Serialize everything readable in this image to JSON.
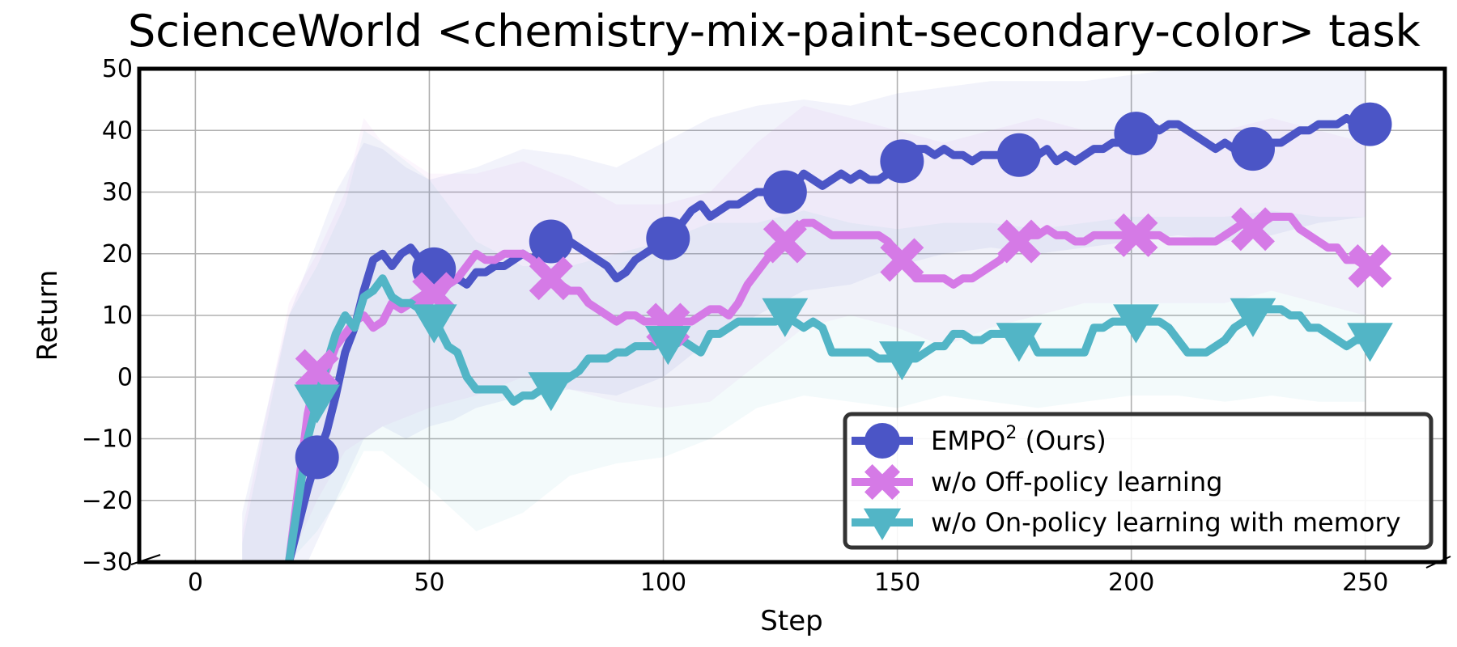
{
  "chart_data": {
    "type": "line",
    "title": "ScienceWorld <chemistry-mix-paint-secondary-color> task",
    "xlabel": "Step",
    "ylabel": "Return",
    "xlim": [
      -12,
      267
    ],
    "ylim": [
      -30,
      50
    ],
    "xticks": [
      0,
      50,
      100,
      150,
      200,
      250
    ],
    "yticks": [
      -30,
      -20,
      -10,
      0,
      10,
      20,
      30,
      40,
      50
    ],
    "grid": true,
    "legend_position": "lower-right",
    "series": [
      {
        "name": "EMPO",
        "name_sup": "2",
        "name_suffix": " (Ours)",
        "color": "#4b55c6",
        "band_color": "#4b55c6",
        "marker": "circle",
        "x": [
          20,
          22,
          24,
          26,
          28,
          30,
          32,
          34,
          36,
          38,
          40,
          42,
          44,
          46,
          48,
          50,
          52,
          54,
          56,
          58,
          60,
          62,
          64,
          66,
          68,
          70,
          72,
          74,
          76,
          78,
          80,
          82,
          84,
          86,
          88,
          90,
          92,
          94,
          96,
          98,
          100,
          102,
          104,
          106,
          108,
          110,
          112,
          114,
          116,
          118,
          120,
          122,
          124,
          126,
          128,
          130,
          132,
          134,
          136,
          138,
          140,
          142,
          144,
          146,
          148,
          150,
          152,
          154,
          156,
          158,
          160,
          162,
          164,
          166,
          168,
          170,
          172,
          174,
          176,
          178,
          180,
          182,
          184,
          186,
          188,
          190,
          192,
          194,
          196,
          198,
          200,
          202,
          204,
          206,
          208,
          210,
          212,
          214,
          216,
          218,
          220,
          222,
          224,
          226,
          228,
          230,
          232,
          234,
          236,
          238,
          240,
          242,
          244,
          246,
          248,
          250
        ],
        "y": [
          -30,
          -24,
          -18,
          -13,
          -9,
          -3,
          4,
          8,
          14,
          19,
          20,
          18,
          20,
          21,
          19,
          18,
          17,
          15,
          16,
          15,
          17,
          17,
          18,
          18,
          19,
          20,
          19,
          21,
          22,
          21,
          22,
          21,
          20,
          19,
          18,
          16,
          17,
          19,
          20,
          21,
          22,
          23,
          25,
          27,
          28,
          26,
          27,
          28,
          28,
          29,
          30,
          30,
          31,
          30,
          31,
          33,
          32,
          31,
          32,
          33,
          32,
          33,
          32,
          32,
          33,
          34,
          36,
          37,
          37,
          36,
          37,
          36,
          36,
          35,
          36,
          36,
          36,
          35,
          36,
          36,
          36,
          37,
          35,
          36,
          35,
          36,
          37,
          37,
          38,
          38,
          39,
          40,
          41,
          40,
          41,
          41,
          40,
          39,
          38,
          37,
          38,
          37,
          37,
          37,
          37,
          38,
          38,
          39,
          40,
          40,
          41,
          41,
          41,
          42,
          41,
          41
        ],
        "band": [
          [
            10,
            -30,
            -22
          ],
          [
            20,
            -30,
            10
          ],
          [
            24,
            -30,
            18
          ],
          [
            30,
            -20,
            30
          ],
          [
            36,
            -10,
            38
          ],
          [
            40,
            -8,
            37
          ],
          [
            45,
            -10,
            34
          ],
          [
            50,
            -8,
            32
          ],
          [
            55,
            -7,
            33
          ],
          [
            60,
            -5,
            34
          ],
          [
            70,
            -3,
            37
          ],
          [
            80,
            -2,
            36
          ],
          [
            90,
            -3,
            34
          ],
          [
            100,
            0,
            38
          ],
          [
            110,
            6,
            42
          ],
          [
            120,
            10,
            44
          ],
          [
            130,
            14,
            45
          ],
          [
            140,
            15,
            44
          ],
          [
            150,
            18,
            46
          ],
          [
            160,
            20,
            47
          ],
          [
            170,
            21,
            48
          ],
          [
            180,
            20,
            48
          ],
          [
            190,
            21,
            48
          ],
          [
            200,
            22,
            49
          ],
          [
            210,
            23,
            50
          ],
          [
            220,
            22,
            50
          ],
          [
            230,
            23,
            50
          ],
          [
            240,
            25,
            50
          ],
          [
            250,
            26,
            50
          ]
        ]
      },
      {
        "name": "w/o Off-policy learning",
        "color": "#d57ae6",
        "band_color": "#d57ae6",
        "marker": "x",
        "x": [
          20,
          22,
          24,
          26,
          28,
          30,
          32,
          34,
          36,
          38,
          40,
          42,
          44,
          46,
          48,
          50,
          52,
          54,
          56,
          58,
          60,
          62,
          64,
          66,
          68,
          70,
          72,
          74,
          76,
          78,
          80,
          82,
          84,
          86,
          88,
          90,
          92,
          94,
          96,
          98,
          100,
          102,
          104,
          106,
          108,
          110,
          112,
          114,
          116,
          118,
          120,
          122,
          124,
          126,
          128,
          130,
          132,
          134,
          136,
          138,
          140,
          142,
          144,
          146,
          148,
          150,
          152,
          154,
          156,
          158,
          160,
          162,
          164,
          166,
          168,
          170,
          172,
          174,
          176,
          178,
          180,
          182,
          184,
          186,
          188,
          190,
          192,
          194,
          196,
          198,
          200,
          202,
          204,
          206,
          208,
          210,
          212,
          214,
          216,
          218,
          220,
          222,
          224,
          226,
          228,
          230,
          232,
          234,
          236,
          238,
          240,
          242,
          244,
          246,
          248,
          250
        ],
        "y": [
          -30,
          -18,
          -6,
          1,
          1,
          5,
          7,
          9,
          10,
          8,
          9,
          12,
          11,
          12,
          13,
          14,
          13,
          15,
          16,
          18,
          20,
          19,
          19,
          20,
          20,
          20,
          19,
          17,
          16,
          15,
          14,
          14,
          12,
          11,
          10,
          9,
          10,
          10,
          9,
          9,
          9,
          8,
          9,
          9,
          10,
          11,
          11,
          10,
          12,
          15,
          17,
          19,
          21,
          22,
          24,
          25,
          25,
          24,
          23,
          23,
          23,
          23,
          23,
          23,
          22,
          20,
          18,
          16,
          16,
          16,
          16,
          15,
          16,
          16,
          17,
          18,
          19,
          21,
          22,
          23,
          23,
          24,
          23,
          23,
          22,
          22,
          23,
          23,
          23,
          23,
          23,
          23,
          23,
          23,
          22,
          22,
          22,
          22,
          22,
          22,
          23,
          24,
          25,
          24,
          25,
          26,
          26,
          26,
          24,
          23,
          22,
          21,
          21,
          19,
          19,
          18
        ],
        "band": [
          [
            10,
            -30,
            -25
          ],
          [
            20,
            -30,
            12
          ],
          [
            26,
            -20,
            20
          ],
          [
            32,
            -12,
            30
          ],
          [
            36,
            -10,
            42
          ],
          [
            40,
            -8,
            38
          ],
          [
            50,
            -5,
            33
          ],
          [
            60,
            -3,
            33
          ],
          [
            70,
            0,
            35
          ],
          [
            80,
            -2,
            32
          ],
          [
            90,
            -4,
            28
          ],
          [
            100,
            -5,
            28
          ],
          [
            110,
            -4,
            30
          ],
          [
            120,
            2,
            38
          ],
          [
            130,
            8,
            44
          ],
          [
            140,
            10,
            42
          ],
          [
            150,
            8,
            40
          ],
          [
            160,
            5,
            38
          ],
          [
            170,
            8,
            40
          ],
          [
            180,
            10,
            42
          ],
          [
            190,
            12,
            40
          ],
          [
            200,
            12,
            40
          ],
          [
            210,
            12,
            40
          ],
          [
            220,
            12,
            40
          ],
          [
            230,
            14,
            42
          ],
          [
            240,
            12,
            40
          ],
          [
            250,
            10,
            38
          ]
        ]
      },
      {
        "name": "w/o On-policy learning with memory",
        "color": "#52b5c6",
        "band_color": "#52b5c6",
        "marker": "triangle-down",
        "x": [
          20,
          22,
          24,
          26,
          28,
          30,
          32,
          34,
          36,
          38,
          40,
          42,
          44,
          46,
          48,
          50,
          52,
          54,
          56,
          58,
          60,
          62,
          64,
          66,
          68,
          70,
          72,
          74,
          76,
          78,
          80,
          82,
          84,
          86,
          88,
          90,
          92,
          94,
          96,
          98,
          100,
          102,
          104,
          106,
          108,
          110,
          112,
          114,
          116,
          118,
          120,
          122,
          124,
          126,
          128,
          130,
          132,
          134,
          136,
          138,
          140,
          142,
          144,
          146,
          148,
          150,
          152,
          154,
          156,
          158,
          160,
          162,
          164,
          166,
          168,
          170,
          172,
          174,
          176,
          178,
          180,
          182,
          184,
          186,
          188,
          190,
          192,
          194,
          196,
          198,
          200,
          202,
          204,
          206,
          208,
          210,
          212,
          214,
          216,
          218,
          220,
          222,
          224,
          226,
          228,
          230,
          232,
          234,
          236,
          238,
          240,
          242,
          244,
          246,
          248,
          250
        ],
        "y": [
          -30,
          -20,
          -10,
          -4,
          2,
          7,
          10,
          8,
          13,
          14,
          16,
          13,
          12,
          12,
          11,
          10,
          8,
          5,
          4,
          0,
          -2,
          -2,
          -2,
          -2,
          -4,
          -3,
          -3,
          -2,
          -2,
          -1,
          0,
          1,
          3,
          3,
          3,
          4,
          4,
          5,
          5,
          5,
          6,
          5,
          6,
          5,
          4,
          7,
          7,
          8,
          9,
          9,
          9,
          9,
          9,
          10,
          9,
          8,
          9,
          8,
          4,
          4,
          4,
          4,
          4,
          3,
          3,
          3,
          3,
          3,
          4,
          5,
          5,
          7,
          7,
          6,
          6,
          7,
          7,
          7,
          6,
          7,
          4,
          4,
          4,
          4,
          4,
          4,
          8,
          8,
          9,
          9,
          9,
          9,
          9,
          9,
          8,
          6,
          4,
          4,
          4,
          5,
          6,
          8,
          9,
          10,
          11,
          11,
          11,
          10,
          10,
          8,
          8,
          7,
          6,
          5,
          6,
          6
        ],
        "band": [
          [
            10,
            -30,
            -27
          ],
          [
            20,
            -30,
            10
          ],
          [
            26,
            -25,
            18
          ],
          [
            32,
            -18,
            28
          ],
          [
            36,
            -12,
            40
          ],
          [
            40,
            -12,
            38
          ],
          [
            50,
            -18,
            32
          ],
          [
            60,
            -25,
            22
          ],
          [
            70,
            -22,
            18
          ],
          [
            80,
            -16,
            18
          ],
          [
            90,
            -14,
            20
          ],
          [
            100,
            -13,
            22
          ],
          [
            110,
            -10,
            25
          ],
          [
            120,
            -5,
            25
          ],
          [
            130,
            -3,
            27
          ],
          [
            140,
            -4,
            25
          ],
          [
            150,
            -5,
            24
          ],
          [
            160,
            -3,
            25
          ],
          [
            170,
            -4,
            25
          ],
          [
            180,
            -5,
            24
          ],
          [
            190,
            -4,
            25
          ],
          [
            200,
            -3,
            26
          ],
          [
            210,
            -3,
            26
          ],
          [
            220,
            -4,
            26
          ],
          [
            230,
            -3,
            27
          ],
          [
            240,
            -4,
            26
          ],
          [
            250,
            -4,
            26
          ]
        ]
      }
    ],
    "markers_at": [
      26,
      51,
      76,
      101,
      126,
      151,
      176,
      201,
      226,
      251
    ]
  }
}
